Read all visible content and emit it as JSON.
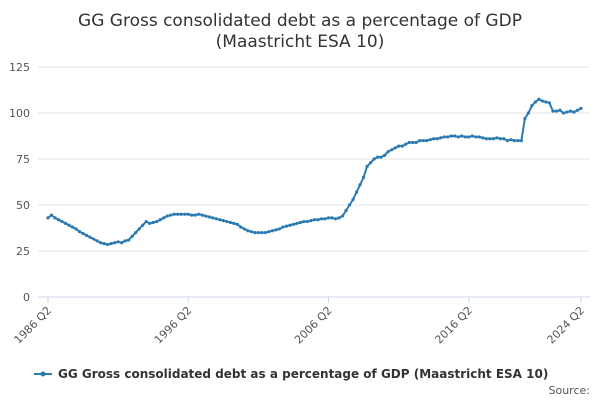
{
  "chart_data": {
    "type": "line",
    "title": [
      "GG Gross consolidated debt as a percentage of GDP",
      "(Maastricht ESA 10)"
    ],
    "categories": [
      "1986 Q2",
      null,
      null,
      null,
      null,
      null,
      null,
      null,
      null,
      null,
      null,
      null,
      null,
      null,
      null,
      null,
      null,
      null,
      null,
      null,
      null,
      null,
      null,
      null,
      null,
      null,
      null,
      null,
      null,
      null,
      null,
      null,
      null,
      null,
      null,
      null,
      null,
      null,
      null,
      null,
      "1996 Q2",
      null,
      null,
      null,
      null,
      null,
      null,
      null,
      null,
      null,
      null,
      null,
      null,
      null,
      null,
      null,
      null,
      null,
      null,
      null,
      null,
      null,
      null,
      null,
      null,
      null,
      null,
      null,
      null,
      null,
      null,
      null,
      null,
      null,
      null,
      null,
      null,
      null,
      null,
      null,
      "2006 Q2",
      null,
      null,
      null,
      null,
      null,
      null,
      null,
      null,
      null,
      null,
      null,
      null,
      null,
      null,
      null,
      null,
      null,
      null,
      null,
      null,
      null,
      null,
      null,
      null,
      null,
      null,
      null,
      null,
      null,
      null,
      null,
      null,
      null,
      null,
      null,
      null,
      null,
      null,
      null,
      "2016 Q2",
      null,
      null,
      null,
      null,
      null,
      null,
      null,
      null,
      null,
      null,
      null,
      null,
      null,
      null,
      null,
      null,
      null,
      null,
      null,
      null,
      null,
      null,
      null,
      null,
      null,
      null,
      null,
      null,
      null,
      null,
      null,
      "2024 Q2"
    ],
    "series": [
      {
        "name": "GG Gross consolidated debt as a percentage of GDP (Maastricht ESA 10)",
        "color": "#2b7bb2",
        "values": [
          43,
          44.5,
          43,
          42,
          41,
          40,
          39,
          38,
          37,
          35.5,
          34.5,
          33.5,
          32.5,
          31.5,
          30.5,
          29.5,
          29,
          28.5,
          29,
          29.5,
          30,
          29.5,
          30.5,
          31,
          33,
          35,
          37,
          39,
          41,
          40,
          40.5,
          41,
          42,
          43,
          44,
          44.5,
          45,
          45,
          45,
          45,
          45,
          44.5,
          44.5,
          45,
          44.5,
          44,
          43.5,
          43,
          42.5,
          42,
          41.5,
          41,
          40.5,
          40,
          39.5,
          38,
          37,
          36,
          35.5,
          35,
          35,
          35,
          35,
          35.5,
          36,
          36.5,
          37,
          38,
          38.5,
          39,
          39.5,
          40,
          40.5,
          41,
          41,
          41.5,
          42,
          42,
          42.5,
          42.5,
          43,
          43,
          42.5,
          43,
          44,
          47,
          50,
          53,
          57,
          61,
          65,
          71,
          73,
          75,
          76,
          76,
          77,
          79,
          80,
          81,
          82,
          82,
          83,
          84,
          84,
          84,
          85,
          85,
          85,
          85.5,
          86,
          86,
          86.5,
          87,
          87,
          87.5,
          87.5,
          87,
          87.5,
          87,
          87,
          87.5,
          87,
          87,
          86.5,
          86,
          86,
          86,
          86.5,
          86,
          86,
          85,
          85.5,
          85,
          85,
          85,
          97,
          100,
          104,
          106,
          107.5,
          106.5,
          106,
          105.5,
          101,
          101,
          101.5,
          100,
          100.5,
          101,
          100.5,
          101.5,
          102.5
        ]
      }
    ],
    "ylim": [
      0,
      125
    ],
    "yticks": [
      0,
      25,
      50,
      75,
      100,
      125
    ],
    "grid": true,
    "source": "Source:"
  }
}
